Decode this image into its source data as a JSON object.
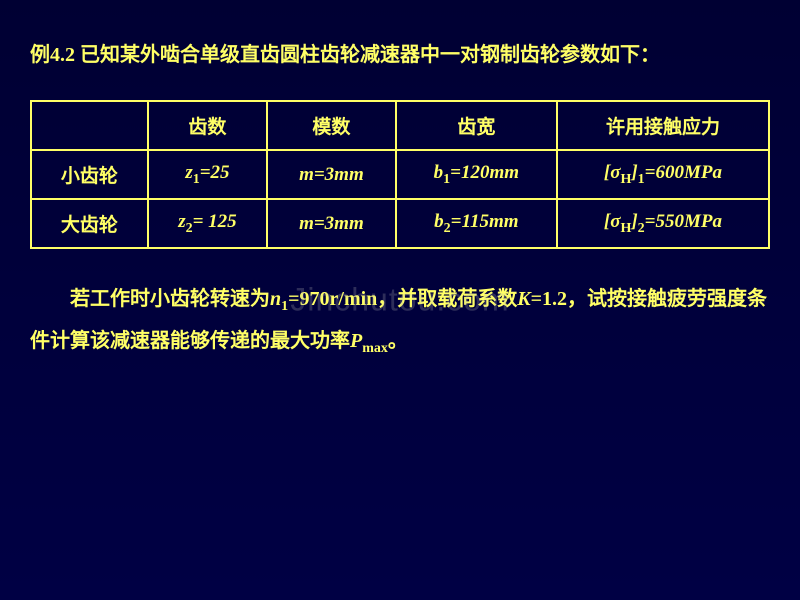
{
  "title": "例4.2 已知某外啮合单级直齿圆柱齿轮减速器中一对钢制齿轮参数如下：",
  "table": {
    "headers": {
      "empty": "",
      "col1": "齿数",
      "col2": "模数",
      "col3": "齿宽",
      "col4": "许用接触应力"
    },
    "row1": {
      "label": "小齿轮",
      "teeth_var": "z",
      "teeth_sub": "1",
      "teeth_val": "=25",
      "module_var": "m",
      "module_val": "=3mm",
      "width_var": "b",
      "width_sub": "1",
      "width_val": "=120mm",
      "stress_open": "[",
      "stress_sigma": "σ",
      "stress_h": "H",
      "stress_close": "]",
      "stress_sub": "1",
      "stress_val": "=600MPa"
    },
    "row2": {
      "label": "大齿轮",
      "teeth_var": "z",
      "teeth_sub": "2",
      "teeth_val": "= 125",
      "module_var": "m",
      "module_val": "=3mm",
      "width_var": "b",
      "width_sub": "2",
      "width_val": "=115mm",
      "stress_open": "[",
      "stress_sigma": "σ",
      "stress_h": "H",
      "stress_close": "]",
      "stress_sub": "2",
      "stress_val": "=550MPa"
    }
  },
  "paragraph": {
    "part1": "若工作时小齿轮转速为",
    "n_var": "n",
    "n_sub": "1",
    "part2": "=970r/min，并取载荷系数",
    "k_var": "K",
    "part3": "=1.2，试按接触疲劳强度条件计算该减速器能够传递的最大功率",
    "p_var": "P",
    "p_sub": "max",
    "part4": "。"
  },
  "watermark": "Jinchutou.com",
  "colors": {
    "text": "#ffff66",
    "border": "#ffff66",
    "bg_top": "#000033",
    "bg_bottom": "#000044",
    "watermark": "rgba(180,180,180,0.25)"
  }
}
